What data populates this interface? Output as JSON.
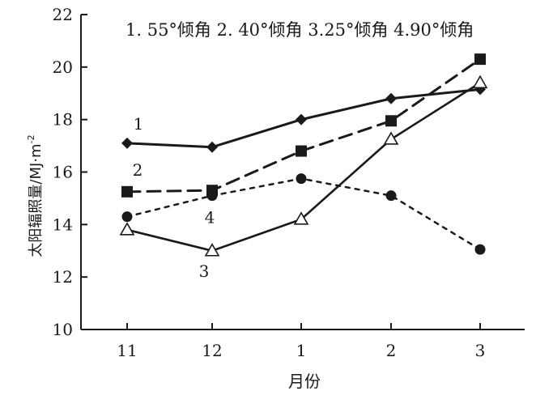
{
  "chart_data": {
    "type": "line",
    "title": "",
    "xlabel": "月份",
    "ylabel": "太阳辐照量/MJ·m",
    "ylabel_exp": "-2",
    "categories": [
      "11",
      "12",
      "1",
      "2",
      "3"
    ],
    "ylim": [
      10,
      22
    ],
    "yticks": [
      "10",
      "12",
      "14",
      "16",
      "18",
      "20",
      "22"
    ],
    "grid": false,
    "legend_text": "1. 55°倾角  2. 40°倾角  3.25°倾角  4.90°倾角",
    "legend_position": "top",
    "series": [
      {
        "name": "1. 55°倾角",
        "label": "1",
        "marker": "diamond",
        "line": "solid",
        "color": "#1a1a1a",
        "values": [
          17.1,
          16.95,
          18.0,
          18.8,
          19.15
        ]
      },
      {
        "name": "2. 40°倾角",
        "label": "2",
        "marker": "square",
        "line": "dashed",
        "color": "#1a1a1a",
        "values": [
          15.25,
          15.3,
          16.8,
          17.95,
          20.3
        ]
      },
      {
        "name": "3.25°倾角",
        "label": "3",
        "marker": "triangle-open",
        "line": "solid-thin",
        "color": "#1a1a1a",
        "values": [
          13.8,
          13.0,
          14.2,
          17.25,
          19.4
        ]
      },
      {
        "name": "4.90°倾角",
        "label": "4",
        "marker": "circle",
        "line": "dotted",
        "color": "#1a1a1a",
        "values": [
          14.3,
          15.1,
          15.75,
          15.1,
          13.05
        ]
      }
    ]
  }
}
